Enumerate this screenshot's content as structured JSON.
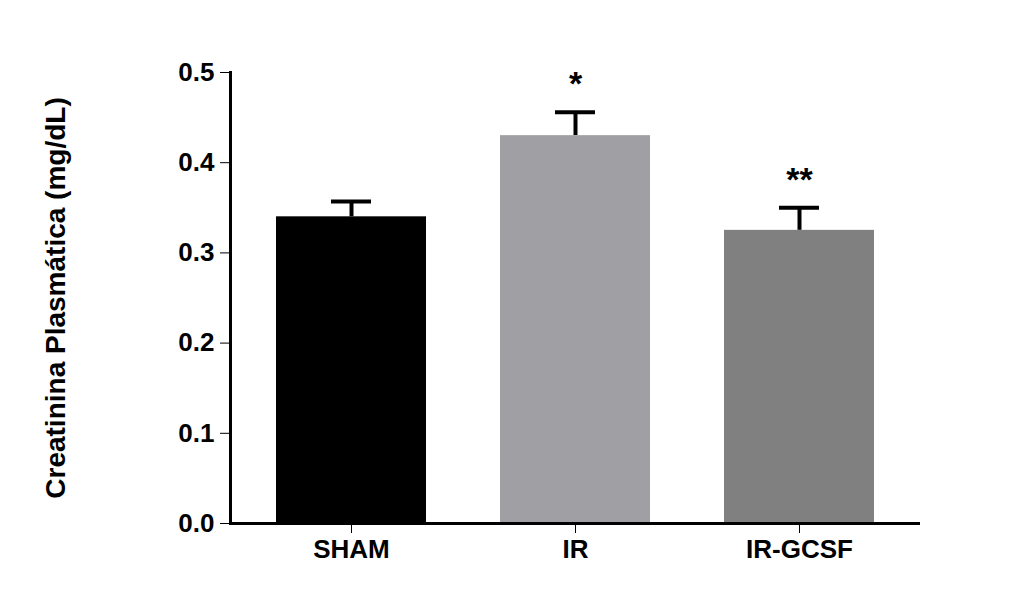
{
  "chart_data": {
    "type": "bar",
    "ylabel": "Creatinina Plasmática (mg/dL)",
    "categories": [
      "SHAM",
      "IR",
      "IR-GCSF"
    ],
    "values": [
      0.34,
      0.43,
      0.325
    ],
    "errors": [
      0.017,
      0.026,
      0.025
    ],
    "colors": [
      "#000000",
      "#a0a0a4",
      "#808080"
    ],
    "annotations": [
      {
        "category": "IR",
        "text": "*"
      },
      {
        "category": "IR-GCSF",
        "text": "**"
      }
    ],
    "ylim": [
      0,
      0.5
    ],
    "yticks": [
      {
        "value": 0,
        "label": "0.0"
      },
      0.1,
      0.2,
      0.3,
      0.4,
      0.5
    ],
    "grid": false
  }
}
